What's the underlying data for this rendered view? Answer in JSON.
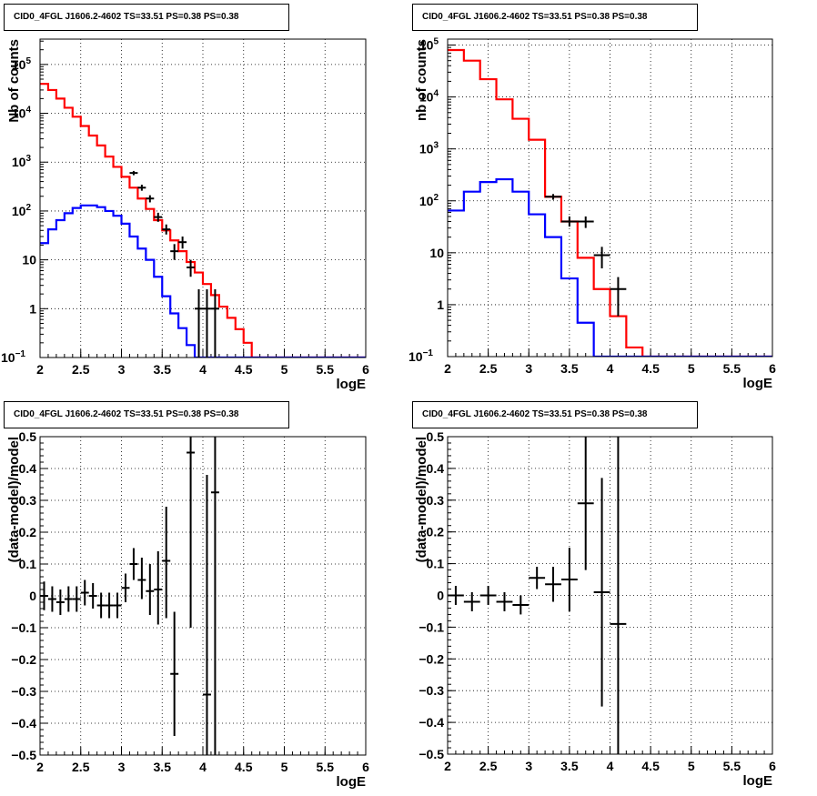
{
  "chart_data": [
    {
      "type": "line",
      "title": "CID0_4FGL J1606.2-4602 TS=33.51 PS=0.38 PS=0.38",
      "xlabel": "logE",
      "ylabel": "Nb of counts",
      "yscale": "log",
      "xlim": [
        2,
        6
      ],
      "ylim": [
        0.1,
        330000
      ],
      "grid": true,
      "x_ticks": [
        "2",
        "2.5",
        "3",
        "3.5",
        "4",
        "4.5",
        "5",
        "5.5",
        "6"
      ],
      "y_ticks": [
        {
          "v": 0.1,
          "m": "10",
          "e": "−1"
        },
        {
          "v": 1,
          "m": "1",
          "e": ""
        },
        {
          "v": 10,
          "m": "10",
          "e": ""
        },
        {
          "v": 100,
          "m": "10",
          "e": "2"
        },
        {
          "v": 1000,
          "m": "10",
          "e": "3"
        },
        {
          "v": 10000,
          "m": "10",
          "e": "4"
        },
        {
          "v": 100000,
          "m": "10",
          "e": "5"
        }
      ],
      "series": [
        {
          "color": "#ff0000",
          "bin_width": 0.1,
          "x": [
            2.0,
            2.1,
            2.2,
            2.3,
            2.4,
            2.5,
            2.6,
            2.7,
            2.8,
            2.9,
            3.0,
            3.1,
            3.2,
            3.3,
            3.4,
            3.5,
            3.6,
            3.7,
            3.8,
            3.9,
            4.0,
            4.1,
            4.2,
            4.3,
            4.4,
            4.5,
            4.6,
            4.7,
            4.8,
            4.9,
            5.0,
            5.1,
            5.2,
            5.3,
            5.4,
            5.5,
            5.6,
            5.7,
            5.8,
            5.9
          ],
          "values": [
            40000,
            30000,
            20000,
            13000,
            8500,
            5500,
            3500,
            2200,
            1300,
            800,
            500,
            300,
            180,
            110,
            65,
            40,
            25,
            15,
            9,
            5.5,
            3.2,
            1.9,
            1.1,
            0.65,
            0.38,
            0.2,
            0.1,
            0.1,
            0.1,
            0.1,
            0.1,
            0.1,
            0.1,
            0.1,
            0.1,
            0.1,
            0.1,
            0.1,
            0.1,
            0.1
          ]
        },
        {
          "color": "#0000ff",
          "bin_width": 0.1,
          "x": [
            2.0,
            2.1,
            2.2,
            2.3,
            2.4,
            2.5,
            2.6,
            2.7,
            2.8,
            2.9,
            3.0,
            3.1,
            3.2,
            3.3,
            3.4,
            3.5,
            3.6,
            3.7,
            3.8,
            3.9,
            4.0,
            4.1,
            4.2,
            4.3,
            4.4,
            4.5,
            4.6,
            4.7,
            4.8,
            4.9,
            5.0,
            5.1,
            5.2,
            5.3,
            5.4,
            5.5,
            5.6,
            5.7,
            5.8,
            5.9
          ],
          "values": [
            22,
            42,
            65,
            90,
            115,
            130,
            130,
            120,
            100,
            80,
            55,
            30,
            17,
            10,
            4.5,
            1.8,
            0.8,
            0.4,
            0.18,
            0.1,
            0.1,
            0.1,
            0.1,
            0.1,
            0.1,
            0.1,
            0.1,
            0.1,
            0.1,
            0.1,
            0.1,
            0.1,
            0.1,
            0.1,
            0.1,
            0.1,
            0.1,
            0.1,
            0.1,
            0.1
          ]
        },
        {
          "color": "#000000",
          "type": "errorbar",
          "bin_width": 0.1,
          "points": [
            {
              "x": 3.15,
              "y": 600,
              "lo": 540,
              "hi": 660
            },
            {
              "x": 3.25,
              "y": 300,
              "lo": 260,
              "hi": 345
            },
            {
              "x": 3.35,
              "y": 180,
              "lo": 150,
              "hi": 210
            },
            {
              "x": 3.45,
              "y": 75,
              "lo": 60,
              "hi": 92
            },
            {
              "x": 3.55,
              "y": 42,
              "lo": 33,
              "hi": 53
            },
            {
              "x": 3.65,
              "y": 15,
              "lo": 10,
              "hi": 21
            },
            {
              "x": 3.75,
              "y": 23,
              "lo": 17,
              "hi": 30
            },
            {
              "x": 3.85,
              "y": 7,
              "lo": 4.5,
              "hi": 10
            },
            {
              "x": 3.95,
              "y": 1,
              "lo": 0.1,
              "hi": 2.5
            },
            {
              "x": 4.05,
              "y": 1,
              "lo": 0.1,
              "hi": 2.5
            },
            {
              "x": 4.15,
              "y": 1,
              "lo": 0.1,
              "hi": 2.5
            }
          ]
        }
      ]
    },
    {
      "type": "line",
      "title": "CID0_4FGL J1606.2-4602 TS=33.51 PS=0.38 PS=0.38",
      "xlabel": "logE",
      "ylabel": "nb of counts",
      "yscale": "log",
      "xlim": [
        2,
        6
      ],
      "ylim": [
        0.1,
        130000
      ],
      "grid": true,
      "x_ticks": [
        "2",
        "2.5",
        "3",
        "3.5",
        "4",
        "4.5",
        "5",
        "5.5",
        "6"
      ],
      "y_ticks": [
        {
          "v": 0.1,
          "m": "10",
          "e": "−1"
        },
        {
          "v": 1,
          "m": "1",
          "e": ""
        },
        {
          "v": 10,
          "m": "10",
          "e": ""
        },
        {
          "v": 100,
          "m": "10",
          "e": "2"
        },
        {
          "v": 1000,
          "m": "10",
          "e": "3"
        },
        {
          "v": 10000,
          "m": "10",
          "e": "4"
        },
        {
          "v": 100000,
          "m": "10",
          "e": "5"
        }
      ],
      "series": [
        {
          "color": "#ff0000",
          "bin_width": 0.2,
          "x": [
            2.0,
            2.2,
            2.4,
            2.6,
            2.8,
            3.0,
            3.2,
            3.4,
            3.6,
            3.8,
            4.0,
            4.2,
            4.4,
            4.6,
            4.8,
            5.0,
            5.2,
            5.4,
            5.6,
            5.8
          ],
          "values": [
            80000,
            50000,
            22000,
            9000,
            3800,
            1500,
            120,
            40,
            8,
            2,
            0.6,
            0.15,
            0.1,
            0.1,
            0.1,
            0.1,
            0.1,
            0.1,
            0.1,
            0.1
          ]
        },
        {
          "color": "#0000ff",
          "bin_width": 0.2,
          "x": [
            2.0,
            2.2,
            2.4,
            2.6,
            2.8,
            3.0,
            3.2,
            3.4,
            3.6,
            3.8,
            4.0,
            4.2,
            4.4,
            4.6,
            4.8,
            5.0,
            5.2,
            5.4,
            5.6,
            5.8
          ],
          "values": [
            65,
            150,
            230,
            260,
            150,
            55,
            20,
            3.2,
            0.45,
            0.1,
            0.1,
            0.1,
            0.1,
            0.1,
            0.1,
            0.1,
            0.1,
            0.1,
            0.1,
            0.1
          ]
        },
        {
          "color": "#000000",
          "type": "errorbar",
          "bin_width": 0.2,
          "points": [
            {
              "x": 3.3,
              "y": 120,
              "lo": 105,
              "hi": 135
            },
            {
              "x": 3.5,
              "y": 40,
              "lo": 32,
              "hi": 50
            },
            {
              "x": 3.7,
              "y": 40,
              "lo": 30,
              "hi": 50
            },
            {
              "x": 3.9,
              "y": 9,
              "lo": 5,
              "hi": 13
            },
            {
              "x": 4.1,
              "y": 2,
              "lo": 0.6,
              "hi": 3.4
            }
          ]
        }
      ]
    },
    {
      "type": "scatter",
      "title": "CID0_4FGL J1606.2-4602 TS=33.51 PS=0.38 PS=0.38",
      "xlabel": "logE",
      "ylabel": "(data-model)/model",
      "yscale": "linear",
      "xlim": [
        2,
        6
      ],
      "ylim": [
        -0.5,
        0.5
      ],
      "grid": true,
      "x_ticks": [
        "2",
        "2.5",
        "3",
        "3.5",
        "4",
        "4.5",
        "5",
        "5.5",
        "6"
      ],
      "y_ticks": [
        "-0.5",
        "-0.4",
        "-0.3",
        "-0.2",
        "-0.1",
        "0",
        "0.1",
        "0.2",
        "0.3",
        "0.4",
        "0.5"
      ],
      "series": [
        {
          "color": "#000000",
          "type": "errorbar",
          "bin_width": 0.1,
          "points": [
            {
              "x": 2.05,
              "y": 0.0,
              "lo": -0.045,
              "hi": 0.045
            },
            {
              "x": 2.15,
              "y": -0.01,
              "lo": -0.05,
              "hi": 0.03
            },
            {
              "x": 2.25,
              "y": -0.02,
              "lo": -0.06,
              "hi": 0.02
            },
            {
              "x": 2.35,
              "y": -0.01,
              "lo": -0.05,
              "hi": 0.03
            },
            {
              "x": 2.45,
              "y": -0.01,
              "lo": -0.05,
              "hi": 0.03
            },
            {
              "x": 2.55,
              "y": 0.01,
              "lo": -0.03,
              "hi": 0.05
            },
            {
              "x": 2.65,
              "y": 0.0,
              "lo": -0.04,
              "hi": 0.04
            },
            {
              "x": 2.75,
              "y": -0.03,
              "lo": -0.07,
              "hi": 0.01
            },
            {
              "x": 2.85,
              "y": -0.03,
              "lo": -0.07,
              "hi": 0.01
            },
            {
              "x": 2.95,
              "y": -0.03,
              "lo": -0.07,
              "hi": 0.01
            },
            {
              "x": 3.05,
              "y": 0.025,
              "lo": -0.02,
              "hi": 0.07
            },
            {
              "x": 3.15,
              "y": 0.1,
              "lo": 0.05,
              "hi": 0.15
            },
            {
              "x": 3.25,
              "y": 0.05,
              "lo": -0.01,
              "hi": 0.12
            },
            {
              "x": 3.35,
              "y": 0.015,
              "lo": -0.06,
              "hi": 0.1
            },
            {
              "x": 3.45,
              "y": 0.02,
              "lo": -0.09,
              "hi": 0.14
            },
            {
              "x": 3.55,
              "y": 0.11,
              "lo": -0.07,
              "hi": 0.28
            },
            {
              "x": 3.65,
              "y": -0.245,
              "lo": -0.44,
              "hi": -0.05
            },
            {
              "x": 3.85,
              "y": 0.45,
              "lo": -0.1,
              "hi": 0.5
            },
            {
              "x": 4.05,
              "y": -0.31,
              "lo": -0.5,
              "hi": 0.38
            },
            {
              "x": 4.15,
              "y": 0.325,
              "lo": -0.5,
              "hi": 0.5
            }
          ]
        }
      ]
    },
    {
      "type": "scatter",
      "title": "CID0_4FGL J1606.2-4602 TS=33.51 PS=0.38 PS=0.38",
      "xlabel": "logE",
      "ylabel": "(data-model)/model",
      "yscale": "linear",
      "xlim": [
        2,
        6
      ],
      "ylim": [
        -0.5,
        0.5
      ],
      "grid": true,
      "x_ticks": [
        "2",
        "2.5",
        "3",
        "3.5",
        "4",
        "4.5",
        "5",
        "5.5",
        "6"
      ],
      "y_ticks": [
        "-0.5",
        "-0.4",
        "-0.3",
        "-0.2",
        "-0.1",
        "0",
        "0.1",
        "0.2",
        "0.3",
        "0.4",
        "0.5"
      ],
      "series": [
        {
          "color": "#000000",
          "type": "errorbar",
          "bin_width": 0.2,
          "points": [
            {
              "x": 2.1,
              "y": 0.0,
              "lo": -0.03,
              "hi": 0.03
            },
            {
              "x": 2.3,
              "y": -0.02,
              "lo": -0.05,
              "hi": 0.01
            },
            {
              "x": 2.5,
              "y": 0.0,
              "lo": -0.03,
              "hi": 0.03
            },
            {
              "x": 2.7,
              "y": -0.02,
              "lo": -0.05,
              "hi": 0.01
            },
            {
              "x": 2.9,
              "y": -0.03,
              "lo": -0.06,
              "hi": 0.0
            },
            {
              "x": 3.1,
              "y": 0.055,
              "lo": 0.02,
              "hi": 0.09
            },
            {
              "x": 3.3,
              "y": 0.035,
              "lo": -0.02,
              "hi": 0.09
            },
            {
              "x": 3.5,
              "y": 0.05,
              "lo": -0.05,
              "hi": 0.15
            },
            {
              "x": 3.7,
              "y": 0.29,
              "lo": 0.08,
              "hi": 0.5
            },
            {
              "x": 3.9,
              "y": 0.01,
              "lo": -0.35,
              "hi": 0.37
            },
            {
              "x": 4.1,
              "y": -0.09,
              "lo": -0.5,
              "hi": 0.5
            }
          ]
        }
      ]
    }
  ]
}
